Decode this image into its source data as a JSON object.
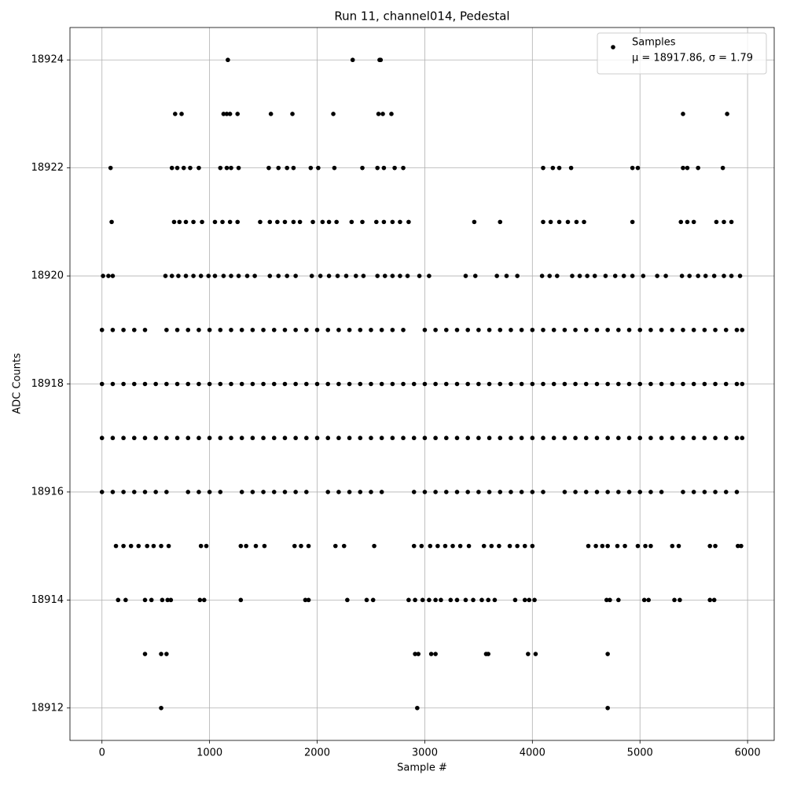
{
  "chart_data": {
    "type": "scatter",
    "title": "Run 11, channel014, Pedestal",
    "x_label": "Sample #",
    "y_label": "ADC Counts",
    "xlim": [
      -297.5,
      6247.5
    ],
    "ylim": [
      18911.4,
      18924.6
    ],
    "xticks": [
      0,
      1000,
      2000,
      3000,
      4000,
      5000,
      6000
    ],
    "yticks": [
      18912,
      18914,
      18916,
      18918,
      18920,
      18922,
      18924
    ],
    "grid": true,
    "legend_loc": "upper right",
    "legend_note": "μ = 18917.86, σ = 1.79",
    "series": [
      {
        "name": "Samples",
        "color": "#000000",
        "x": [
          1170,
          2330,
          2580,
          2590,
          680,
          740,
          1130,
          1160,
          1190,
          1260,
          1570,
          1770,
          2150,
          2570,
          2610,
          2690,
          5400,
          5810,
          80,
          650,
          700,
          760,
          820,
          900,
          1100,
          1160,
          1200,
          1270,
          1550,
          1640,
          1720,
          1780,
          1940,
          2010,
          2160,
          2420,
          2560,
          2620,
          2720,
          2800,
          4100,
          4190,
          4250,
          4360,
          4930,
          4980,
          5400,
          5440,
          5540,
          5770,
          90,
          670,
          720,
          780,
          850,
          930,
          1050,
          1120,
          1190,
          1260,
          1470,
          1560,
          1630,
          1700,
          1780,
          1840,
          1960,
          2050,
          2110,
          2180,
          2320,
          2420,
          2550,
          2620,
          2700,
          2770,
          2850,
          3460,
          3700,
          4100,
          4170,
          4250,
          4330,
          4410,
          4480,
          4930,
          5380,
          5440,
          5500,
          5710,
          5780,
          5850,
          10,
          60,
          100,
          590,
          650,
          710,
          780,
          850,
          920,
          990,
          1050,
          1130,
          1200,
          1270,
          1350,
          1420,
          1560,
          1640,
          1720,
          1800,
          1950,
          2030,
          2110,
          2190,
          2270,
          2360,
          2430,
          2560,
          2630,
          2700,
          2770,
          2840,
          2950,
          3040,
          3380,
          3470,
          3670,
          3760,
          3860,
          4090,
          4160,
          4230,
          4370,
          4440,
          4510,
          4580,
          4680,
          4770,
          4850,
          4930,
          5030,
          5160,
          5240,
          5390,
          5460,
          5540,
          5610,
          5690,
          5780,
          5850,
          5930,
          0,
          100,
          200,
          300,
          400,
          600,
          700,
          800,
          900,
          1000,
          1100,
          1200,
          1300,
          1400,
          1500,
          1600,
          1700,
          1800,
          1900,
          2000,
          2100,
          2200,
          2300,
          2400,
          2500,
          2600,
          2700,
          2800,
          3000,
          3100,
          3200,
          3300,
          3400,
          3500,
          3600,
          3700,
          3800,
          3900,
          4000,
          4100,
          4200,
          4300,
          4400,
          4500,
          4600,
          4700,
          4800,
          4900,
          5000,
          5100,
          5200,
          5300,
          5400,
          5500,
          5600,
          5700,
          5800,
          5900,
          5950,
          0,
          100,
          200,
          300,
          400,
          500,
          600,
          700,
          800,
          900,
          1000,
          1100,
          1200,
          1300,
          1400,
          1500,
          1600,
          1700,
          1800,
          1900,
          2000,
          2100,
          2200,
          2300,
          2400,
          2500,
          2600,
          2700,
          2800,
          2900,
          3000,
          3100,
          3200,
          3300,
          3400,
          3500,
          3600,
          3700,
          3800,
          3900,
          4000,
          4100,
          4200,
          4300,
          4400,
          4500,
          4600,
          4700,
          4800,
          4900,
          5000,
          5100,
          5200,
          5300,
          5400,
          5500,
          5600,
          5700,
          5800,
          5900,
          5950,
          0,
          100,
          200,
          300,
          400,
          500,
          600,
          700,
          800,
          900,
          1000,
          1100,
          1200,
          1300,
          1400,
          1500,
          1600,
          1700,
          1800,
          1900,
          2000,
          2100,
          2200,
          2300,
          2400,
          2500,
          2600,
          2700,
          2800,
          2900,
          3000,
          3100,
          3200,
          3300,
          3400,
          3500,
          3600,
          3700,
          3800,
          3900,
          4000,
          4100,
          4200,
          4300,
          4400,
          4500,
          4600,
          4700,
          4800,
          4900,
          5000,
          5100,
          5200,
          5300,
          5400,
          5500,
          5600,
          5700,
          5800,
          5900,
          5950,
          0,
          100,
          200,
          300,
          400,
          500,
          600,
          800,
          900,
          1000,
          1100,
          1300,
          1400,
          1500,
          1600,
          1700,
          1800,
          1900,
          2100,
          2200,
          2300,
          2400,
          2500,
          2600,
          2900,
          3000,
          3100,
          3200,
          3300,
          3400,
          3500,
          3600,
          3700,
          3800,
          3900,
          4000,
          4100,
          4300,
          4400,
          4500,
          4600,
          4700,
          4800,
          4900,
          5000,
          5100,
          5200,
          5400,
          5500,
          5600,
          5700,
          5800,
          5900,
          130,
          200,
          270,
          340,
          420,
          480,
          550,
          620,
          920,
          970,
          1290,
          1340,
          1430,
          1510,
          1790,
          1850,
          1920,
          2170,
          2250,
          2530,
          2900,
          2970,
          3050,
          3120,
          3190,
          3260,
          3330,
          3410,
          3550,
          3620,
          3690,
          3790,
          3860,
          3930,
          4000,
          4520,
          4590,
          4650,
          4700,
          4790,
          4860,
          4980,
          5050,
          5100,
          5300,
          5360,
          5650,
          5700,
          5910,
          5940,
          150,
          220,
          400,
          460,
          560,
          610,
          640,
          910,
          950,
          1290,
          1890,
          1920,
          2280,
          2460,
          2520,
          2850,
          2910,
          2980,
          3040,
          3100,
          3150,
          3240,
          3300,
          3380,
          3450,
          3530,
          3590,
          3650,
          3840,
          3930,
          3970,
          4020,
          4690,
          4720,
          4800,
          5040,
          5080,
          5320,
          5370,
          5650,
          5690,
          400,
          550,
          600,
          2910,
          2940,
          3060,
          3100,
          3570,
          3590,
          3960,
          4030,
          4700,
          550,
          2930,
          4700
        ],
        "values": [
          18924,
          18924,
          18924,
          18924,
          18923,
          18923,
          18923,
          18923,
          18923,
          18923,
          18923,
          18923,
          18923,
          18923,
          18923,
          18923,
          18923,
          18923,
          18922,
          18922,
          18922,
          18922,
          18922,
          18922,
          18922,
          18922,
          18922,
          18922,
          18922,
          18922,
          18922,
          18922,
          18922,
          18922,
          18922,
          18922,
          18922,
          18922,
          18922,
          18922,
          18922,
          18922,
          18922,
          18922,
          18922,
          18922,
          18922,
          18922,
          18922,
          18922,
          18921,
          18921,
          18921,
          18921,
          18921,
          18921,
          18921,
          18921,
          18921,
          18921,
          18921,
          18921,
          18921,
          18921,
          18921,
          18921,
          18921,
          18921,
          18921,
          18921,
          18921,
          18921,
          18921,
          18921,
          18921,
          18921,
          18921,
          18921,
          18921,
          18921,
          18921,
          18921,
          18921,
          18921,
          18921,
          18921,
          18921,
          18921,
          18921,
          18921,
          18921,
          18921,
          18920,
          18920,
          18920,
          18920,
          18920,
          18920,
          18920,
          18920,
          18920,
          18920,
          18920,
          18920,
          18920,
          18920,
          18920,
          18920,
          18920,
          18920,
          18920,
          18920,
          18920,
          18920,
          18920,
          18920,
          18920,
          18920,
          18920,
          18920,
          18920,
          18920,
          18920,
          18920,
          18920,
          18920,
          18920,
          18920,
          18920,
          18920,
          18920,
          18920,
          18920,
          18920,
          18920,
          18920,
          18920,
          18920,
          18920,
          18920,
          18920,
          18920,
          18920,
          18920,
          18920,
          18920,
          18920,
          18920,
          18920,
          18920,
          18920,
          18920,
          18920,
          18919,
          18919,
          18919,
          18919,
          18919,
          18919,
          18919,
          18919,
          18919,
          18919,
          18919,
          18919,
          18919,
          18919,
          18919,
          18919,
          18919,
          18919,
          18919,
          18919,
          18919,
          18919,
          18919,
          18919,
          18919,
          18919,
          18919,
          18919,
          18919,
          18919,
          18919,
          18919,
          18919,
          18919,
          18919,
          18919,
          18919,
          18919,
          18919,
          18919,
          18919,
          18919,
          18919,
          18919,
          18919,
          18919,
          18919,
          18919,
          18919,
          18919,
          18919,
          18919,
          18919,
          18919,
          18919,
          18919,
          18919,
          18919,
          18919,
          18918,
          18918,
          18918,
          18918,
          18918,
          18918,
          18918,
          18918,
          18918,
          18918,
          18918,
          18918,
          18918,
          18918,
          18918,
          18918,
          18918,
          18918,
          18918,
          18918,
          18918,
          18918,
          18918,
          18918,
          18918,
          18918,
          18918,
          18918,
          18918,
          18918,
          18918,
          18918,
          18918,
          18918,
          18918,
          18918,
          18918,
          18918,
          18918,
          18918,
          18918,
          18918,
          18918,
          18918,
          18918,
          18918,
          18918,
          18918,
          18918,
          18918,
          18918,
          18918,
          18918,
          18918,
          18918,
          18918,
          18918,
          18918,
          18918,
          18918,
          18918,
          18917,
          18917,
          18917,
          18917,
          18917,
          18917,
          18917,
          18917,
          18917,
          18917,
          18917,
          18917,
          18917,
          18917,
          18917,
          18917,
          18917,
          18917,
          18917,
          18917,
          18917,
          18917,
          18917,
          18917,
          18917,
          18917,
          18917,
          18917,
          18917,
          18917,
          18917,
          18917,
          18917,
          18917,
          18917,
          18917,
          18917,
          18917,
          18917,
          18917,
          18917,
          18917,
          18917,
          18917,
          18917,
          18917,
          18917,
          18917,
          18917,
          18917,
          18917,
          18917,
          18917,
          18917,
          18917,
          18917,
          18917,
          18917,
          18917,
          18917,
          18917,
          18916,
          18916,
          18916,
          18916,
          18916,
          18916,
          18916,
          18916,
          18916,
          18916,
          18916,
          18916,
          18916,
          18916,
          18916,
          18916,
          18916,
          18916,
          18916,
          18916,
          18916,
          18916,
          18916,
          18916,
          18916,
          18916,
          18916,
          18916,
          18916,
          18916,
          18916,
          18916,
          18916,
          18916,
          18916,
          18916,
          18916,
          18916,
          18916,
          18916,
          18916,
          18916,
          18916,
          18916,
          18916,
          18916,
          18916,
          18916,
          18916,
          18916,
          18916,
          18916,
          18916,
          18915,
          18915,
          18915,
          18915,
          18915,
          18915,
          18915,
          18915,
          18915,
          18915,
          18915,
          18915,
          18915,
          18915,
          18915,
          18915,
          18915,
          18915,
          18915,
          18915,
          18915,
          18915,
          18915,
          18915,
          18915,
          18915,
          18915,
          18915,
          18915,
          18915,
          18915,
          18915,
          18915,
          18915,
          18915,
          18915,
          18915,
          18915,
          18915,
          18915,
          18915,
          18915,
          18915,
          18915,
          18915,
          18915,
          18915,
          18915,
          18915,
          18915,
          18914,
          18914,
          18914,
          18914,
          18914,
          18914,
          18914,
          18914,
          18914,
          18914,
          18914,
          18914,
          18914,
          18914,
          18914,
          18914,
          18914,
          18914,
          18914,
          18914,
          18914,
          18914,
          18914,
          18914,
          18914,
          18914,
          18914,
          18914,
          18914,
          18914,
          18914,
          18914,
          18914,
          18914,
          18914,
          18914,
          18914,
          18914,
          18914,
          18914,
          18914,
          18913,
          18913,
          18913,
          18913,
          18913,
          18913,
          18913,
          18913,
          18913,
          18913,
          18913,
          18913,
          18912,
          18912,
          18912
        ]
      }
    ]
  }
}
